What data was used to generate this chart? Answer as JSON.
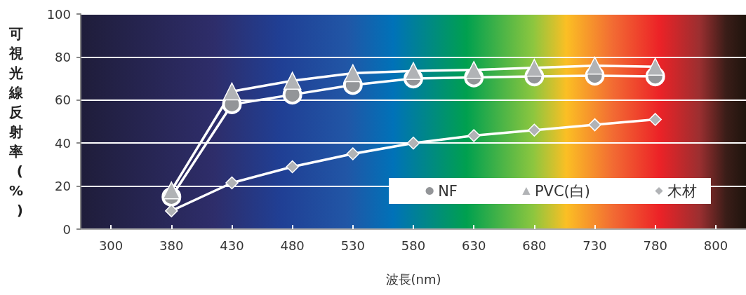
{
  "chart_data": {
    "type": "line",
    "xlabel": "波長(nm)",
    "ylabel": "可視光線反射率(%)",
    "categories": [
      "300",
      "380",
      "430",
      "480",
      "530",
      "580",
      "630",
      "680",
      "730",
      "780",
      "800"
    ],
    "series": [
      {
        "name": "NF",
        "color": "#939598",
        "marker": "circle",
        "values": [
          null,
          15,
          58,
          62.5,
          67,
          70,
          70.5,
          71,
          71.3,
          71,
          null
        ]
      },
      {
        "name": "PVC(白)",
        "color": "#b1b3b6",
        "marker": "triangle",
        "values": [
          null,
          18,
          64,
          69,
          72.5,
          73.5,
          74,
          75,
          76,
          75.5,
          null
        ]
      },
      {
        "name": "木材",
        "color": "#b1b3b6",
        "marker": "diamond",
        "values": [
          null,
          8.5,
          21.5,
          29,
          35,
          40,
          43.5,
          46,
          48.5,
          51,
          null
        ]
      }
    ],
    "ylim": [
      0,
      100
    ],
    "yticks": [
      0,
      20,
      40,
      60,
      80,
      100
    ],
    "grid": "y",
    "legend": "bottom right"
  }
}
